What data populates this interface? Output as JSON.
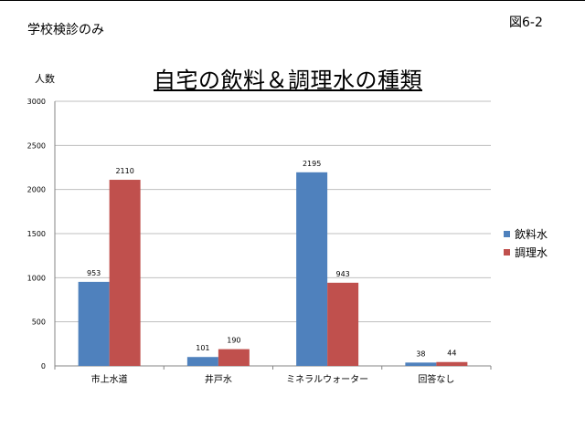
{
  "header": {
    "note": "学校検診のみ",
    "figure_no": "図6-2"
  },
  "colors": {
    "series1": "#4F81BD",
    "series2": "#C0504D",
    "grid": "#BFBFBF",
    "axis": "#868686"
  },
  "chart_data": {
    "type": "bar",
    "title": "自宅の飲料＆調理水の種類",
    "ylabel": "人数",
    "xlabel": "",
    "categories": [
      "市上水道",
      "井戸水",
      "ミネラルウォーター",
      "回答なし"
    ],
    "series": [
      {
        "name": "飲料水",
        "values": [
          953,
          101,
          2195,
          38
        ]
      },
      {
        "name": "調理水",
        "values": [
          2110,
          190,
          943,
          44
        ]
      }
    ],
    "ylim": [
      0,
      3000
    ],
    "yticks": [
      0,
      500,
      1000,
      1500,
      2000,
      2500,
      3000
    ],
    "grid": true,
    "legend_position": "right"
  }
}
